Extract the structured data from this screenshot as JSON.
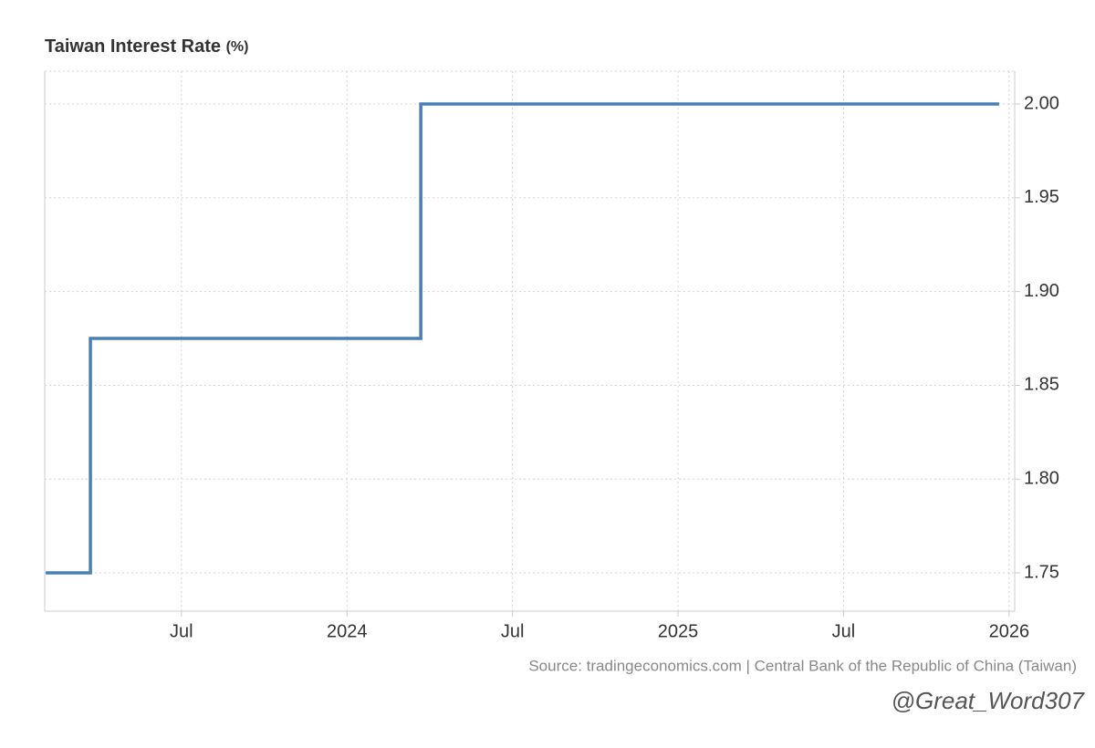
{
  "chart_data": {
    "type": "step",
    "title": "Taiwan Interest Rate",
    "unit": "(%)",
    "source": "Source: tradingeconomics.com | Central Bank of the Republic of China (Taiwan)",
    "watermark": "@Great_Word307",
    "x": [
      2023.09,
      2023.225,
      2024.223,
      2025.97
    ],
    "series": [
      {
        "name": "Taiwan Interest Rate",
        "color": "#4a7eb6",
        "values": [
          1.75,
          1.875,
          2.0,
          2.0
        ]
      }
    ],
    "xlim": [
      2023.087,
      2026.017
    ],
    "xticks": [
      {
        "value": 2023.5,
        "label": "Jul"
      },
      2024,
      {
        "value": 2024.5,
        "label": "Jul"
      },
      2025,
      {
        "value": 2025.5,
        "label": "Jul"
      },
      2026
    ],
    "ylim": [
      1.7296,
      2.0175
    ],
    "yticks": [
      1.75,
      {
        "value": 1.8,
        "label": "1.80"
      },
      1.85,
      {
        "value": 1.9,
        "label": "1.90"
      },
      1.95,
      {
        "value": 2.0,
        "label": "2.00"
      }
    ],
    "grid": true
  }
}
